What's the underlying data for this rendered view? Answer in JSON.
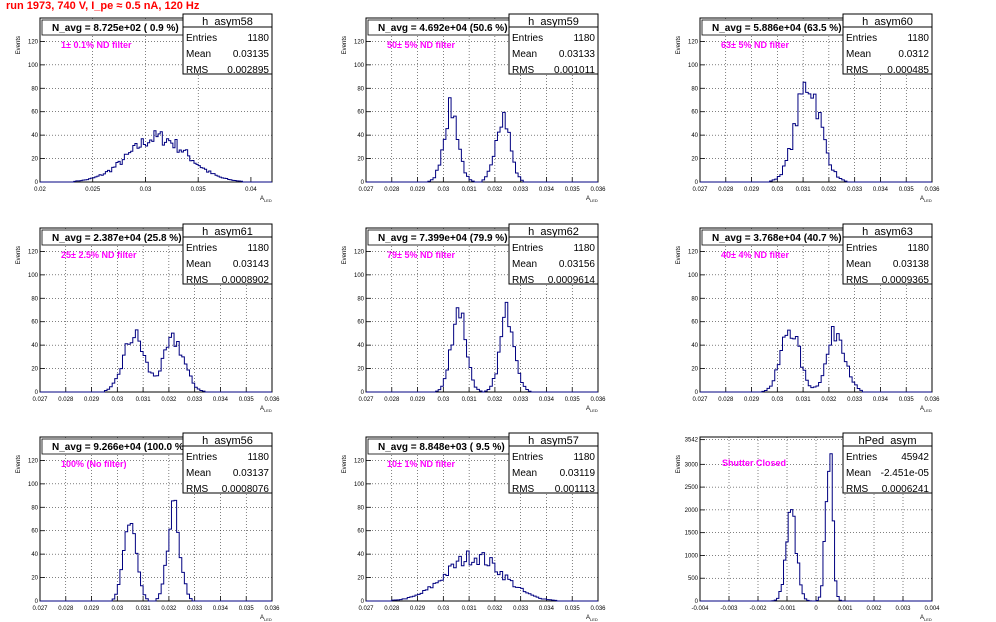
{
  "page_title": "run 1973,   740 V, I_pe ≈ 0.5 nA, 120 Hz",
  "colors": {
    "histogram": "#000080",
    "annotation": "#ff00ff",
    "title": "#ff0000",
    "grid": "#000000"
  },
  "chart_data": [
    {
      "type": "histogram",
      "name": "h_asym58",
      "stats": {
        "entries": "1180",
        "mean": "0.03135",
        "rms": "0.002895"
      },
      "header": "N_avg = 8.725e+02 ( 0.9 %)",
      "note": "1± 0.1% ND filter",
      "xlabel": "A_LED",
      "ylabel": "Events",
      "xlim": [
        0.02,
        0.042
      ],
      "ylim": [
        0,
        140
      ],
      "xticks": [
        "0.02",
        "0.025",
        "0.03",
        "0.035",
        "0.04"
      ],
      "xtick_values": [
        0.02,
        0.025,
        0.03,
        0.035,
        0.04
      ],
      "yticks": [
        "0",
        "20",
        "40",
        "60",
        "80",
        "100",
        "120"
      ],
      "peaks": [
        {
          "mu": 0.0312,
          "sigma": 0.0028,
          "height": 38
        }
      ],
      "nbins": 110
    },
    {
      "type": "histogram",
      "name": "h_asym59",
      "stats": {
        "entries": "1180",
        "mean": "0.03133",
        "rms": "0.001011"
      },
      "header": "N_avg = 4.692e+04 (50.6 %)",
      "note": "50± 5% ND filter",
      "xlabel": "A_LED",
      "ylabel": "Events",
      "xlim": [
        0.027,
        0.036
      ],
      "ylim": [
        0,
        140
      ],
      "xticks": [
        "0.027",
        "0.028",
        "0.029",
        "0.03",
        "0.031",
        "0.032",
        "0.033",
        "0.034",
        "0.035",
        "0.036"
      ],
      "xtick_values": [
        0.027,
        0.028,
        0.029,
        0.03,
        0.031,
        0.032,
        0.033,
        0.034,
        0.035,
        0.036
      ],
      "yticks": [
        "0",
        "20",
        "40",
        "60",
        "80",
        "100",
        "120"
      ],
      "peaks": [
        {
          "mu": 0.0303,
          "sigma": 0.00028,
          "height": 62
        },
        {
          "mu": 0.0323,
          "sigma": 0.00028,
          "height": 58
        }
      ],
      "nbins": 90
    },
    {
      "type": "histogram",
      "name": "h_asym60",
      "stats": {
        "entries": "1180",
        "mean": "0.0312",
        "rms": "0.000485"
      },
      "header": "N_avg = 5.886e+04 (63.5 %)",
      "note": "63± 5% ND filter",
      "xlabel": "A_LED",
      "ylabel": "Events",
      "xlim": [
        0.027,
        0.036
      ],
      "ylim": [
        0,
        140
      ],
      "xticks": [
        "0.027",
        "0.028",
        "0.029",
        "0.03",
        "0.031",
        "0.032",
        "0.033",
        "0.034",
        "0.035",
        "0.036"
      ],
      "xtick_values": [
        0.027,
        0.028,
        0.029,
        0.03,
        0.031,
        0.032,
        0.033,
        0.034,
        0.035,
        0.036
      ],
      "yticks": [
        "0",
        "20",
        "40",
        "60",
        "80",
        "100",
        "120"
      ],
      "peaks": [
        {
          "mu": 0.0312,
          "sigma": 0.00048,
          "height": 84
        }
      ],
      "nbins": 90
    },
    {
      "type": "histogram",
      "name": "h_asym61",
      "stats": {
        "entries": "1180",
        "mean": "0.03143",
        "rms": "0.0008902"
      },
      "header": "N_avg = 2.387e+04 (25.8 %)",
      "note": "25± 2.5% ND filter",
      "xlabel": "A_LED",
      "ylabel": "Events",
      "xlim": [
        0.027,
        0.036
      ],
      "ylim": [
        0,
        140
      ],
      "xticks": [
        "0.027",
        "0.028",
        "0.029",
        "0.03",
        "0.031",
        "0.032",
        "0.033",
        "0.034",
        "0.035",
        "0.036"
      ],
      "xtick_values": [
        0.027,
        0.028,
        0.029,
        0.03,
        0.031,
        0.032,
        0.033,
        0.034,
        0.035,
        0.036
      ],
      "yticks": [
        "0",
        "20",
        "40",
        "60",
        "80",
        "100",
        "120"
      ],
      "peaks": [
        {
          "mu": 0.03065,
          "sigma": 0.0004,
          "height": 48
        },
        {
          "mu": 0.0322,
          "sigma": 0.0004,
          "height": 44
        }
      ],
      "nbins": 90
    },
    {
      "type": "histogram",
      "name": "h_asym62",
      "stats": {
        "entries": "1180",
        "mean": "0.03156",
        "rms": "0.0009614"
      },
      "header": "N_avg = 7.399e+04 (79.9 %)",
      "note": "79± 5% ND filter",
      "xlabel": "A_LED",
      "ylabel": "Events",
      "xlim": [
        0.027,
        0.036
      ],
      "ylim": [
        0,
        140
      ],
      "xticks": [
        "0.027",
        "0.028",
        "0.029",
        "0.03",
        "0.031",
        "0.032",
        "0.033",
        "0.034",
        "0.035",
        "0.036"
      ],
      "xtick_values": [
        0.027,
        0.028,
        0.029,
        0.03,
        0.031,
        0.032,
        0.033,
        0.034,
        0.035,
        0.036
      ],
      "yticks": [
        "0",
        "20",
        "40",
        "60",
        "80",
        "100",
        "120"
      ],
      "peaks": [
        {
          "mu": 0.0306,
          "sigma": 0.00028,
          "height": 72
        },
        {
          "mu": 0.0325,
          "sigma": 0.00028,
          "height": 68
        }
      ],
      "nbins": 90
    },
    {
      "type": "histogram",
      "name": "h_asym63",
      "stats": {
        "entries": "1180",
        "mean": "0.03138",
        "rms": "0.0009365"
      },
      "header": "N_avg = 3.768e+04 (40.7 %)",
      "note": "40± 4% ND filter",
      "xlabel": "A_LED",
      "ylabel": "Events",
      "xlim": [
        0.027,
        0.036
      ],
      "ylim": [
        0,
        140
      ],
      "xticks": [
        "0.027",
        "0.028",
        "0.029",
        "0.03",
        "0.031",
        "0.032",
        "0.033",
        "0.034",
        "0.035",
        "0.036"
      ],
      "xtick_values": [
        0.027,
        0.028,
        0.029,
        0.03,
        0.031,
        0.032,
        0.033,
        0.034,
        0.035,
        0.036
      ],
      "yticks": [
        "0",
        "20",
        "40",
        "60",
        "80",
        "100",
        "120"
      ],
      "peaks": [
        {
          "mu": 0.0305,
          "sigma": 0.00035,
          "height": 55
        },
        {
          "mu": 0.0323,
          "sigma": 0.00035,
          "height": 52
        }
      ],
      "nbins": 90
    },
    {
      "type": "histogram",
      "name": "h_asym56",
      "stats": {
        "entries": "1180",
        "mean": "0.03137",
        "rms": "0.0008076"
      },
      "header": "N_avg = 9.266e+04 (100.0 %)",
      "note": "100% (No filter)",
      "xlabel": "A_LED",
      "ylabel": "Events",
      "xlim": [
        0.027,
        0.036
      ],
      "ylim": [
        0,
        140
      ],
      "xticks": [
        "0.027",
        "0.028",
        "0.029",
        "0.03",
        "0.031",
        "0.032",
        "0.033",
        "0.034",
        "0.035",
        "0.036"
      ],
      "xtick_values": [
        0.027,
        0.028,
        0.029,
        0.03,
        0.031,
        0.032,
        0.033,
        0.034,
        0.035,
        0.036
      ],
      "yticks": [
        "0",
        "20",
        "40",
        "60",
        "80",
        "100",
        "120"
      ],
      "peaks": [
        {
          "mu": 0.0305,
          "sigma": 0.00024,
          "height": 70
        },
        {
          "mu": 0.0322,
          "sigma": 0.00024,
          "height": 75
        }
      ],
      "nbins": 90
    },
    {
      "type": "histogram",
      "name": "h_asym57",
      "stats": {
        "entries": "1180",
        "mean": "0.03119",
        "rms": "0.001113"
      },
      "header": "N_avg = 8.848e+03 ( 9.5 %)",
      "note": "10± 1% ND filter",
      "xlabel": "A_LED",
      "ylabel": "Events",
      "xlim": [
        0.027,
        0.036
      ],
      "ylim": [
        0,
        140
      ],
      "xticks": [
        "0.027",
        "0.028",
        "0.029",
        "0.03",
        "0.031",
        "0.032",
        "0.033",
        "0.034",
        "0.035",
        "0.036"
      ],
      "xtick_values": [
        0.027,
        0.028,
        0.029,
        0.03,
        0.031,
        0.032,
        0.033,
        0.034,
        0.035,
        0.036
      ],
      "yticks": [
        "0",
        "20",
        "40",
        "60",
        "80",
        "100",
        "120"
      ],
      "peaks": [
        {
          "mu": 0.0312,
          "sigma": 0.0011,
          "height": 38
        }
      ],
      "nbins": 90
    },
    {
      "type": "histogram",
      "name": "hPed_asym",
      "stats": {
        "entries": "45942",
        "mean": "-2.451e-05",
        "rms": "0.0006241"
      },
      "header": "",
      "note": "Shutter Closed",
      "xlabel": "A_LED",
      "ylabel": "Events",
      "xlim": [
        -0.004,
        0.004
      ],
      "ylim": [
        0,
        3600
      ],
      "xticks": [
        "-0.004",
        "-0.003",
        "-0.002",
        "-0.001",
        "0",
        "0.001",
        "0.002",
        "0.003",
        "0.004"
      ],
      "xtick_values": [
        -0.004,
        -0.003,
        -0.002,
        -0.001,
        0,
        0.001,
        0.002,
        0.003,
        0.004
      ],
      "yticks": [
        "0",
        "500",
        "1000",
        "1500",
        "2000",
        "2500",
        "3000",
        "3542"
      ],
      "peaks": [
        {
          "mu": -0.00085,
          "sigma": 0.00018,
          "height": 1900
        },
        {
          "mu": 0.00045,
          "sigma": 0.00012,
          "height": 3300
        }
      ],
      "nbins": 100
    }
  ]
}
